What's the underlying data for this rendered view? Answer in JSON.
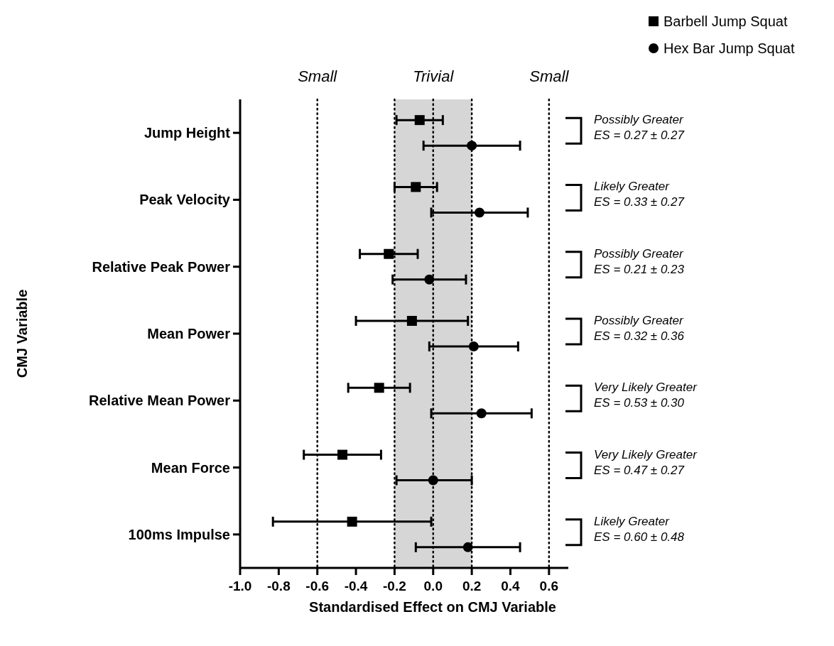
{
  "chart_data": {
    "type": "scatter",
    "orientation": "horizontal",
    "xlabel": "Standardised Effect on CMJ Variable",
    "ylabel": "CMJ Variable",
    "categories": [
      "Jump Height",
      "Peak Velocity",
      "Relative Peak Power",
      "Mean Power",
      "Relative Mean Power",
      "Mean Force",
      "100ms Impulse"
    ],
    "series": [
      {
        "name": "Barbell Jump Squat",
        "color": "#000000",
        "marker": "square",
        "values": [
          -0.07,
          -0.09,
          -0.23,
          -0.11,
          -0.28,
          -0.47,
          -0.42
        ],
        "errors": [
          0.12,
          0.11,
          0.15,
          0.29,
          0.16,
          0.2,
          0.41
        ]
      },
      {
        "name": "Hex Bar Jump Squat",
        "color": "#000000",
        "marker": "circle",
        "values": [
          0.2,
          0.24,
          -0.02,
          0.21,
          0.25,
          0.0,
          0.18
        ],
        "errors": [
          0.25,
          0.25,
          0.19,
          0.23,
          0.26,
          [
            -0.19,
            0.2
          ],
          0.27
        ]
      }
    ],
    "xlim": [
      -1.0,
      0.7
    ],
    "xticks": [
      {
        "value": -1.0,
        "label": "-1.0"
      },
      -0.8,
      -0.6,
      -0.4,
      -0.2,
      {
        "value": 0,
        "label": "0.0"
      },
      0.2,
      0.4,
      0.6
    ],
    "ref_lines": [
      {
        "axis": "x",
        "value": -0.6,
        "label": "Small",
        "line_style": "dotted",
        "color": "#000000"
      },
      {
        "axis": "x",
        "value": -0.2,
        "line_style": "dotted",
        "color": "#000000"
      },
      {
        "axis": "x",
        "value": 0,
        "line_style": "dotted",
        "color": "#000000"
      },
      {
        "axis": "x",
        "value": 0.2,
        "line_style": "dotted",
        "color": "#000000"
      },
      {
        "axis": "x",
        "value": 0.6,
        "label": "Small",
        "line_style": "dotted",
        "color": "#000000"
      }
    ],
    "bands": [
      {
        "axis": "x",
        "from": -0.2,
        "to": 0.2,
        "label": "Trivial",
        "color": "#d6d6d6"
      }
    ],
    "annotations": [
      "Possibly Greater\nES = 0.27 ± 0.27",
      "Likely Greater\nES = 0.33 ± 0.27",
      "Possibly Greater\nES = 0.21 ± 0.23",
      "Possibly Greater\nES = 0.32 ± 0.36",
      "Very Likely Greater\nES = 0.53 ± 0.30",
      "Very Likely Greater\nES = 0.47 ± 0.27",
      "Likely Greater\nES = 0.60 ± 0.48"
    ],
    "legend": "top right"
  }
}
